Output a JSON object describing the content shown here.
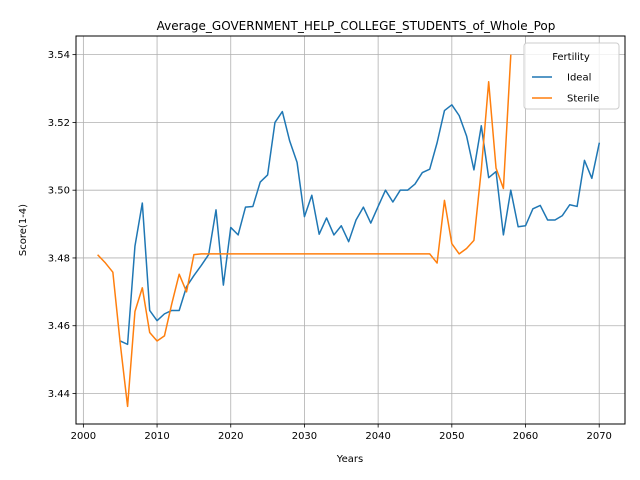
{
  "chart_data": {
    "type": "line",
    "title": "Average_GOVERNMENT_HELP_COLLEGE_STUDENTS_of_Whole_Pop",
    "xlabel": "Years",
    "ylabel": "Score(1-4)",
    "xlim": [
      1999,
      2073.5
    ],
    "ylim": [
      3.431,
      3.5455
    ],
    "xticks": [
      2000,
      2010,
      2020,
      2030,
      2040,
      2050,
      2060,
      2070
    ],
    "yticks": [
      3.44,
      3.46,
      3.48,
      3.5,
      3.52,
      3.54
    ],
    "ytick_labels": [
      "3.44",
      "3.46",
      "3.48",
      "3.50",
      "3.52",
      "3.54"
    ],
    "grid": true,
    "legend": {
      "title": "Fertility",
      "placement": "top-right"
    },
    "series": [
      {
        "name": "Ideal",
        "color": "#1f77b4",
        "x": [
          2005,
          2006,
          2007,
          2008,
          2009,
          2010,
          2011,
          2012,
          2013,
          2014,
          2015,
          2016,
          2017,
          2018,
          2019,
          2020,
          2021,
          2022,
          2023,
          2024,
          2025,
          2026,
          2027,
          2028,
          2029,
          2030,
          2031,
          2032,
          2033,
          2034,
          2035,
          2036,
          2037,
          2038,
          2039,
          2040,
          2041,
          2042,
          2043,
          2044,
          2045,
          2046,
          2047,
          2048,
          2049,
          2050,
          2051,
          2052,
          2053,
          2054,
          2055,
          2056,
          2057,
          2058,
          2059,
          2060,
          2061,
          2062,
          2063,
          2064,
          2065,
          2066,
          2067,
          2068,
          2069,
          2070
        ],
        "y": [
          3.4555,
          3.4545,
          3.4835,
          3.4962,
          3.4645,
          3.4615,
          3.4635,
          3.4645,
          3.4645,
          3.4715,
          3.4748,
          3.4778,
          3.481,
          3.4942,
          3.472,
          3.489,
          3.4868,
          3.495,
          3.4952,
          3.5024,
          3.5045,
          3.52,
          3.5232,
          3.5145,
          3.5082,
          3.4922,
          3.4985,
          3.487,
          3.4918,
          3.4868,
          3.4895,
          3.4848,
          3.4912,
          3.495,
          3.4903,
          3.4952,
          3.5,
          3.4965,
          3.5,
          3.5,
          3.5018,
          3.5052,
          3.5062,
          3.514,
          3.5235,
          3.5252,
          3.522,
          3.516,
          3.506,
          3.519,
          3.5037,
          3.5055,
          3.4868,
          3.5,
          3.4892,
          3.4895,
          3.4945,
          3.4955,
          3.4912,
          3.4912,
          3.4925,
          3.4957,
          3.4952,
          3.5088,
          3.5035,
          3.5138
        ]
      },
      {
        "name": "Sterile",
        "color": "#ff7f0e",
        "x": [
          2002,
          2003,
          2004,
          2005,
          2006,
          2007,
          2008,
          2009,
          2010,
          2011,
          2012,
          2013,
          2014,
          2015,
          2016,
          2017,
          2018,
          2019,
          2020,
          2021,
          2022,
          2023,
          2024,
          2025,
          2026,
          2027,
          2028,
          2029,
          2030,
          2031,
          2032,
          2033,
          2034,
          2035,
          2036,
          2037,
          2038,
          2039,
          2040,
          2041,
          2042,
          2043,
          2044,
          2045,
          2046,
          2047,
          2048,
          2049,
          2050,
          2051,
          2052,
          2053,
          2054,
          2055,
          2056,
          2057,
          2058
        ],
        "y": [
          3.4808,
          3.4785,
          3.4758,
          3.4548,
          3.4362,
          3.4642,
          3.4712,
          3.458,
          3.4555,
          3.457,
          3.4665,
          3.4752,
          3.47,
          3.481,
          3.4812,
          3.4812,
          3.4812,
          3.4812,
          3.4812,
          3.4812,
          3.4812,
          3.4812,
          3.4812,
          3.4812,
          3.4812,
          3.4812,
          3.4812,
          3.4812,
          3.4812,
          3.4812,
          3.4812,
          3.4812,
          3.4812,
          3.4812,
          3.4812,
          3.4812,
          3.4812,
          3.4812,
          3.4812,
          3.4812,
          3.4812,
          3.4812,
          3.4812,
          3.4812,
          3.4812,
          3.4812,
          3.4785,
          3.497,
          3.4842,
          3.4812,
          3.4828,
          3.4852,
          3.506,
          3.532,
          3.5065,
          3.5005,
          3.5398
        ]
      }
    ]
  }
}
